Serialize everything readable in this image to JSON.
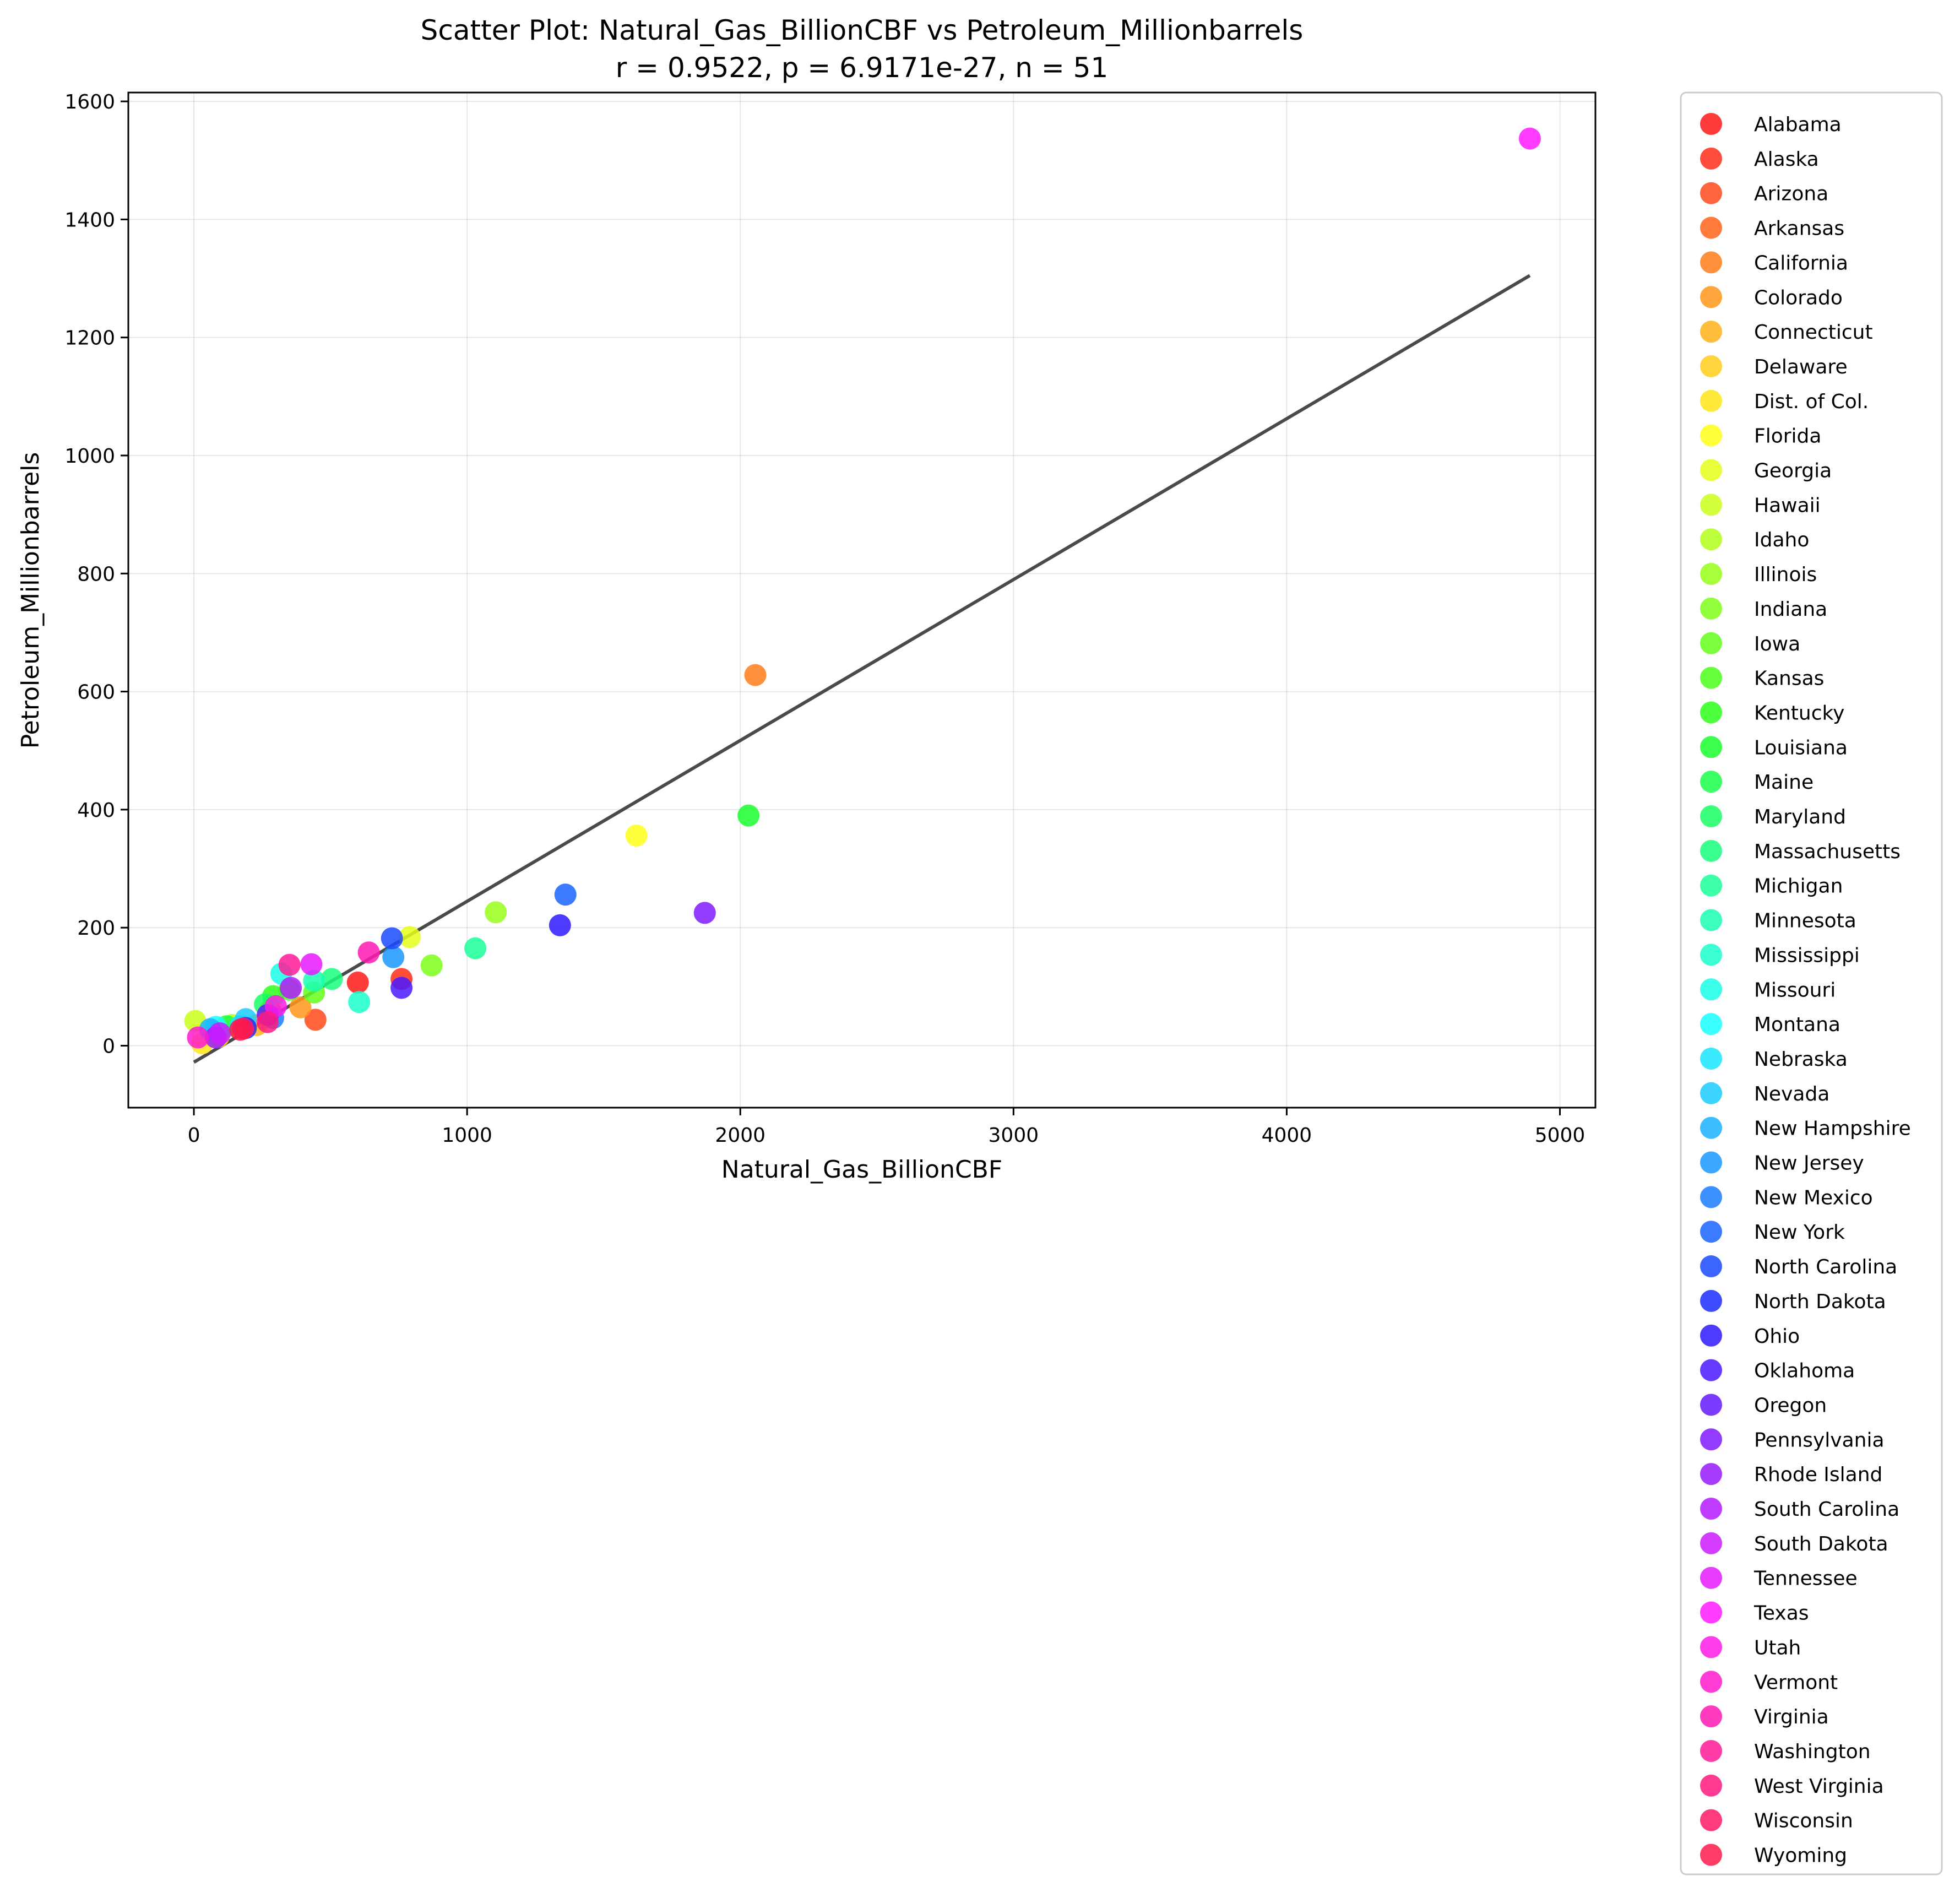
{
  "chart_data": {
    "type": "scatter",
    "title": "Scatter Plot: Natural_Gas_BillionCBF vs Petroleum_Millionbarrels",
    "subtitle": "r = 0.9522, p = 6.9171e-27, n = 51",
    "xlabel": "Natural_Gas_BillionCBF",
    "ylabel": "Petroleum_Millionbarrels",
    "xlim": [
      -240,
      5130
    ],
    "ylim": [
      -105,
      1615
    ],
    "xticks": [
      0,
      1000,
      2000,
      3000,
      4000,
      5000
    ],
    "yticks": [
      0,
      200,
      400,
      600,
      800,
      1000,
      1200,
      1400,
      1600
    ],
    "grid": true,
    "legend_placement": "outside right",
    "regression_line": {
      "x": [
        0,
        4890
      ],
      "y": [
        -28,
        1305
      ],
      "color": "#404040"
    },
    "points": [
      {
        "name": "Alabama",
        "x": 600,
        "y": 107,
        "color": "#ff1a1a"
      },
      {
        "name": "Alaska",
        "x": 760,
        "y": 113,
        "color": "#ff2e1a"
      },
      {
        "name": "Arizona",
        "x": 445,
        "y": 44,
        "color": "#ff4a1a"
      },
      {
        "name": "Arkansas",
        "x": 280,
        "y": 60,
        "color": "#ff641a"
      },
      {
        "name": "California",
        "x": 2055,
        "y": 628,
        "color": "#ff7e1a"
      },
      {
        "name": "Colorado",
        "x": 390,
        "y": 65,
        "color": "#ff981a"
      },
      {
        "name": "Connecticut",
        "x": 230,
        "y": 35,
        "color": "#ffb21a"
      },
      {
        "name": "Delaware",
        "x": 90,
        "y": 15,
        "color": "#ffcc1a"
      },
      {
        "name": "Dist. of Col.",
        "x": 30,
        "y": 4,
        "color": "#ffe61a"
      },
      {
        "name": "Florida",
        "x": 1620,
        "y": 356,
        "color": "#ffff1a"
      },
      {
        "name": "Georgia",
        "x": 790,
        "y": 184,
        "color": "#e6ff1a"
      },
      {
        "name": "Hawaii",
        "x": 5,
        "y": 42,
        "color": "#ccff1a"
      },
      {
        "name": "Idaho",
        "x": 140,
        "y": 35,
        "color": "#b2ff1a"
      },
      {
        "name": "Illinois",
        "x": 1105,
        "y": 226,
        "color": "#98ff1a"
      },
      {
        "name": "Indiana",
        "x": 870,
        "y": 136,
        "color": "#7eff1a"
      },
      {
        "name": "Iowa",
        "x": 440,
        "y": 90,
        "color": "#64ff1a"
      },
      {
        "name": "Kansas",
        "x": 350,
        "y": 95,
        "color": "#4aff1a"
      },
      {
        "name": "Kentucky",
        "x": 290,
        "y": 84,
        "color": "#2eff1a"
      },
      {
        "name": "Louisiana",
        "x": 2030,
        "y": 390,
        "color": "#1aff2e"
      },
      {
        "name": "Maine",
        "x": 120,
        "y": 33,
        "color": "#1aff4a"
      },
      {
        "name": "Maryland",
        "x": 260,
        "y": 70,
        "color": "#1aff64"
      },
      {
        "name": "Massachusetts",
        "x": 505,
        "y": 113,
        "color": "#1aff7e"
      },
      {
        "name": "Michigan",
        "x": 1030,
        "y": 165,
        "color": "#1aff98"
      },
      {
        "name": "Minnesota",
        "x": 440,
        "y": 110,
        "color": "#1affb2"
      },
      {
        "name": "Mississippi",
        "x": 605,
        "y": 74,
        "color": "#1affcc"
      },
      {
        "name": "Missouri",
        "x": 320,
        "y": 122,
        "color": "#1affe6"
      },
      {
        "name": "Montana",
        "x": 80,
        "y": 32,
        "color": "#1affff"
      },
      {
        "name": "Nebraska",
        "x": 170,
        "y": 33,
        "color": "#1ae6ff"
      },
      {
        "name": "Nevada",
        "x": 190,
        "y": 45,
        "color": "#1accff"
      },
      {
        "name": "New Hampshire",
        "x": 60,
        "y": 28,
        "color": "#1ab2ff"
      },
      {
        "name": "New Jersey",
        "x": 730,
        "y": 150,
        "color": "#1a98ff"
      },
      {
        "name": "New Mexico",
        "x": 290,
        "y": 47,
        "color": "#1a7eff"
      },
      {
        "name": "New York",
        "x": 1360,
        "y": 256,
        "color": "#1a64ff"
      },
      {
        "name": "North Carolina",
        "x": 725,
        "y": 182,
        "color": "#1a4aff"
      },
      {
        "name": "North Dakota",
        "x": 190,
        "y": 30,
        "color": "#1a2eff"
      },
      {
        "name": "Ohio",
        "x": 1340,
        "y": 204,
        "color": "#2e1aff"
      },
      {
        "name": "Oklahoma",
        "x": 760,
        "y": 98,
        "color": "#4a1aff"
      },
      {
        "name": "Oregon",
        "x": 270,
        "y": 52,
        "color": "#641aff"
      },
      {
        "name": "Pennsylvania",
        "x": 1870,
        "y": 225,
        "color": "#7e1aff"
      },
      {
        "name": "Rhode Island",
        "x": 80,
        "y": 14,
        "color": "#981aff"
      },
      {
        "name": "South Carolina",
        "x": 355,
        "y": 98,
        "color": "#b21aff"
      },
      {
        "name": "South Dakota",
        "x": 95,
        "y": 21,
        "color": "#cc1aff"
      },
      {
        "name": "Tennessee",
        "x": 430,
        "y": 138,
        "color": "#e61aff"
      },
      {
        "name": "Texas",
        "x": 4890,
        "y": 1537,
        "color": "#ff1aff"
      },
      {
        "name": "Utah",
        "x": 300,
        "y": 67,
        "color": "#ff1ae6"
      },
      {
        "name": "Vermont",
        "x": 15,
        "y": 14,
        "color": "#ff1acc"
      },
      {
        "name": "Virginia",
        "x": 640,
        "y": 158,
        "color": "#ff1ab2"
      },
      {
        "name": "Washington",
        "x": 350,
        "y": 137,
        "color": "#ff1a98"
      },
      {
        "name": "West Virginia",
        "x": 270,
        "y": 40,
        "color": "#ff1a7e"
      },
      {
        "name": "Wisconsin",
        "x": 180,
        "y": 29,
        "color": "#ff1a64"
      },
      {
        "name": "Wyoming",
        "x": 170,
        "y": 27,
        "color": "#ff1a4a"
      }
    ]
  }
}
